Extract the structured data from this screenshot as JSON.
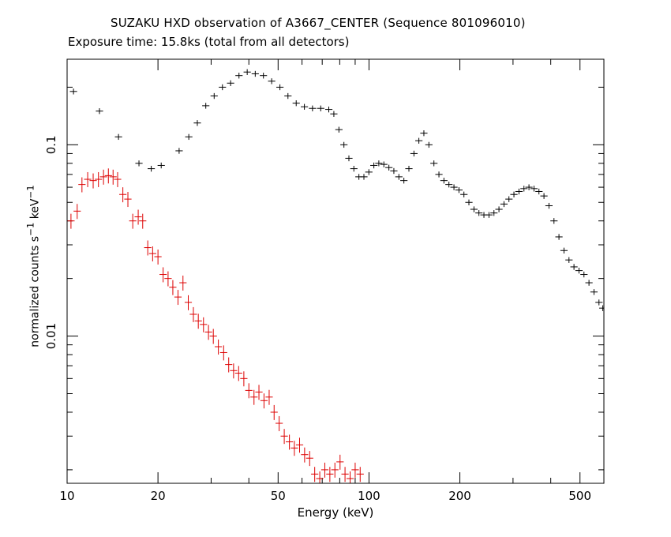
{
  "chart_data": {
    "type": "scatter",
    "title": "SUZAKU HXD observation of A3667_CENTER (Sequence 801096010)",
    "subtitle": "Exposure time: 15.8ks (total from all detectors)",
    "xlabel": "Energy (keV)",
    "ylabel": "normalized counts s-1 keV-1",
    "x_scale": "log",
    "y_scale": "log",
    "xlim": [
      10,
      600
    ],
    "ylim": [
      0.0017,
      0.28
    ],
    "x_ticks": [
      10,
      20,
      50,
      100,
      200,
      500
    ],
    "y_ticks": [
      0.01,
      0.1
    ],
    "grid": false,
    "series": [
      {
        "color": "#000000",
        "points": [
          [
            10.5,
            0.19,
            0.8
          ],
          [
            12.8,
            0.15,
            0.8
          ],
          [
            14.8,
            0.11,
            0.8
          ],
          [
            17.3,
            0.08,
            0.8
          ],
          [
            19.0,
            0.075,
            0.8
          ],
          [
            20.5,
            0.078,
            0.8
          ],
          [
            23.5,
            0.093,
            0.5
          ],
          [
            25.3,
            0.11,
            0.5
          ],
          [
            27.0,
            0.13,
            0.5
          ],
          [
            28.8,
            0.16,
            0.5
          ],
          [
            30.7,
            0.18,
            0.5
          ],
          [
            32.7,
            0.2,
            0.5
          ],
          [
            34.8,
            0.21,
            0.5
          ],
          [
            37.1,
            0.23,
            0.5
          ],
          [
            39.5,
            0.24,
            0.5
          ],
          [
            42.0,
            0.235,
            0.5
          ],
          [
            44.7,
            0.23,
            0.5
          ],
          [
            47.6,
            0.215,
            0.5
          ],
          [
            50.7,
            0.2,
            0.5
          ],
          [
            53.9,
            0.18,
            0.5
          ],
          [
            57.4,
            0.165,
            0.5
          ],
          [
            61.1,
            0.158,
            0.5
          ],
          [
            65.0,
            0.155,
            0.5
          ],
          [
            69.2,
            0.155,
            0.5
          ],
          [
            73.6,
            0.153,
            0.5
          ],
          [
            76.5,
            0.145,
            0.5
          ],
          [
            79.5,
            0.12,
            0.5
          ],
          [
            82.6,
            0.1,
            0.5
          ],
          [
            85.8,
            0.085,
            0.5
          ],
          [
            89.1,
            0.075,
            0.5
          ],
          [
            92.6,
            0.068,
            0.5
          ],
          [
            96.2,
            0.068,
            0.5
          ],
          [
            99.9,
            0.072,
            0.5
          ],
          [
            103.8,
            0.078,
            0.5
          ],
          [
            107.8,
            0.08,
            0.5
          ],
          [
            112.0,
            0.079,
            0.5
          ],
          [
            116.4,
            0.076,
            0.5
          ],
          [
            120.9,
            0.073,
            0.5
          ],
          [
            125.6,
            0.068,
            0.5
          ],
          [
            130.5,
            0.065,
            0.5
          ],
          [
            135.6,
            0.075,
            0.5
          ],
          [
            140.9,
            0.09,
            0.5
          ],
          [
            146.3,
            0.105,
            0.5
          ],
          [
            152.0,
            0.115,
            0.5
          ],
          [
            157.9,
            0.1,
            0.5
          ],
          [
            164.1,
            0.08,
            0.5
          ],
          [
            170.5,
            0.07,
            0.5
          ],
          [
            177.1,
            0.065,
            0.5
          ],
          [
            184.0,
            0.062,
            0.5
          ],
          [
            191.2,
            0.06,
            0.5
          ],
          [
            198.6,
            0.058,
            0.5
          ],
          [
            206.3,
            0.055,
            0.5
          ],
          [
            214.3,
            0.05,
            0.5
          ],
          [
            222.7,
            0.046,
            0.5
          ],
          [
            231.3,
            0.044,
            0.5
          ],
          [
            240.3,
            0.043,
            0.5
          ],
          [
            249.7,
            0.043,
            0.5
          ],
          [
            259.4,
            0.044,
            0.5
          ],
          [
            269.5,
            0.046,
            0.5
          ],
          [
            280.0,
            0.049,
            0.5
          ],
          [
            290.8,
            0.052,
            0.5
          ],
          [
            302.1,
            0.055,
            0.5
          ],
          [
            313.9,
            0.057,
            0.5
          ],
          [
            326.1,
            0.059,
            0.5
          ],
          [
            338.8,
            0.06,
            0.5
          ],
          [
            352.0,
            0.059,
            0.5
          ],
          [
            365.6,
            0.057,
            0.5
          ],
          [
            379.9,
            0.054,
            0.5
          ],
          [
            394.6,
            0.048,
            0.5
          ],
          [
            410.0,
            0.04,
            0.5
          ],
          [
            425.9,
            0.033,
            0.5
          ],
          [
            442.5,
            0.028,
            0.5
          ],
          [
            459.7,
            0.025,
            0.5
          ],
          [
            477.6,
            0.023,
            0.5
          ],
          [
            496.1,
            0.022,
            0.5
          ],
          [
            515.4,
            0.021,
            0.5
          ],
          [
            535.5,
            0.019,
            0.5
          ],
          [
            556.3,
            0.017,
            0.5
          ],
          [
            577.9,
            0.015,
            0.5
          ],
          [
            595.0,
            0.014,
            0.5
          ]
        ]
      },
      {
        "color": "#dd0000",
        "points": [
          [
            10.3,
            0.04,
            0.2
          ],
          [
            10.8,
            0.045,
            0.2
          ],
          [
            11.2,
            0.062,
            0.2
          ],
          [
            11.7,
            0.066,
            0.2
          ],
          [
            12.2,
            0.065,
            0.2
          ],
          [
            12.7,
            0.066,
            0.2
          ],
          [
            13.2,
            0.068,
            0.2
          ],
          [
            13.7,
            0.069,
            0.2
          ],
          [
            14.2,
            0.068,
            0.2
          ],
          [
            14.7,
            0.066,
            0.2
          ],
          [
            15.3,
            0.055,
            0.2
          ],
          [
            15.9,
            0.052,
            0.2
          ],
          [
            16.5,
            0.04,
            0.2
          ],
          [
            17.2,
            0.042,
            0.2
          ],
          [
            17.8,
            0.04,
            0.2
          ],
          [
            18.5,
            0.029,
            0.2
          ],
          [
            19.2,
            0.027,
            0.2
          ],
          [
            20.0,
            0.026,
            0.2
          ],
          [
            20.8,
            0.021,
            0.2
          ],
          [
            21.6,
            0.02,
            0.2
          ],
          [
            22.4,
            0.018,
            0.2
          ],
          [
            23.3,
            0.016,
            0.2
          ],
          [
            24.2,
            0.019,
            0.2
          ],
          [
            25.2,
            0.015,
            0.2
          ],
          [
            26.2,
            0.013,
            0.2
          ],
          [
            27.2,
            0.012,
            0.2
          ],
          [
            28.3,
            0.0115,
            0.2
          ],
          [
            29.4,
            0.0105,
            0.2
          ],
          [
            30.5,
            0.01,
            0.2
          ],
          [
            31.7,
            0.0088,
            0.2
          ],
          [
            33.0,
            0.0082,
            0.2
          ],
          [
            34.3,
            0.0071,
            0.2
          ],
          [
            35.6,
            0.0066,
            0.2
          ],
          [
            37.0,
            0.0064,
            0.2
          ],
          [
            38.5,
            0.006,
            0.2
          ],
          [
            40.0,
            0.0052,
            0.2
          ],
          [
            41.6,
            0.0048,
            0.2
          ],
          [
            43.2,
            0.0051,
            0.2
          ],
          [
            44.9,
            0.0046,
            0.2
          ],
          [
            46.7,
            0.0048,
            0.2
          ],
          [
            48.5,
            0.004,
            0.2
          ],
          [
            50.4,
            0.0035,
            0.2
          ],
          [
            52.4,
            0.003,
            0.2
          ],
          [
            54.5,
            0.0028,
            0.2
          ],
          [
            56.6,
            0.0026,
            0.2
          ],
          [
            58.9,
            0.0027,
            0.2
          ],
          [
            61.2,
            0.0024,
            0.2
          ],
          [
            63.6,
            0.0023,
            0.2
          ],
          [
            66.1,
            0.0019,
            0.2
          ],
          [
            68.7,
            0.0018,
            0.2
          ],
          [
            71.4,
            0.002,
            0.2
          ],
          [
            74.2,
            0.0019,
            0.2
          ],
          [
            77.1,
            0.002,
            0.2
          ],
          [
            80.2,
            0.0022,
            0.2
          ],
          [
            83.3,
            0.0019,
            0.2
          ],
          [
            86.6,
            0.0018,
            0.2
          ],
          [
            90.0,
            0.002,
            0.2
          ],
          [
            93.5,
            0.0019,
            0.2
          ]
        ]
      }
    ]
  }
}
